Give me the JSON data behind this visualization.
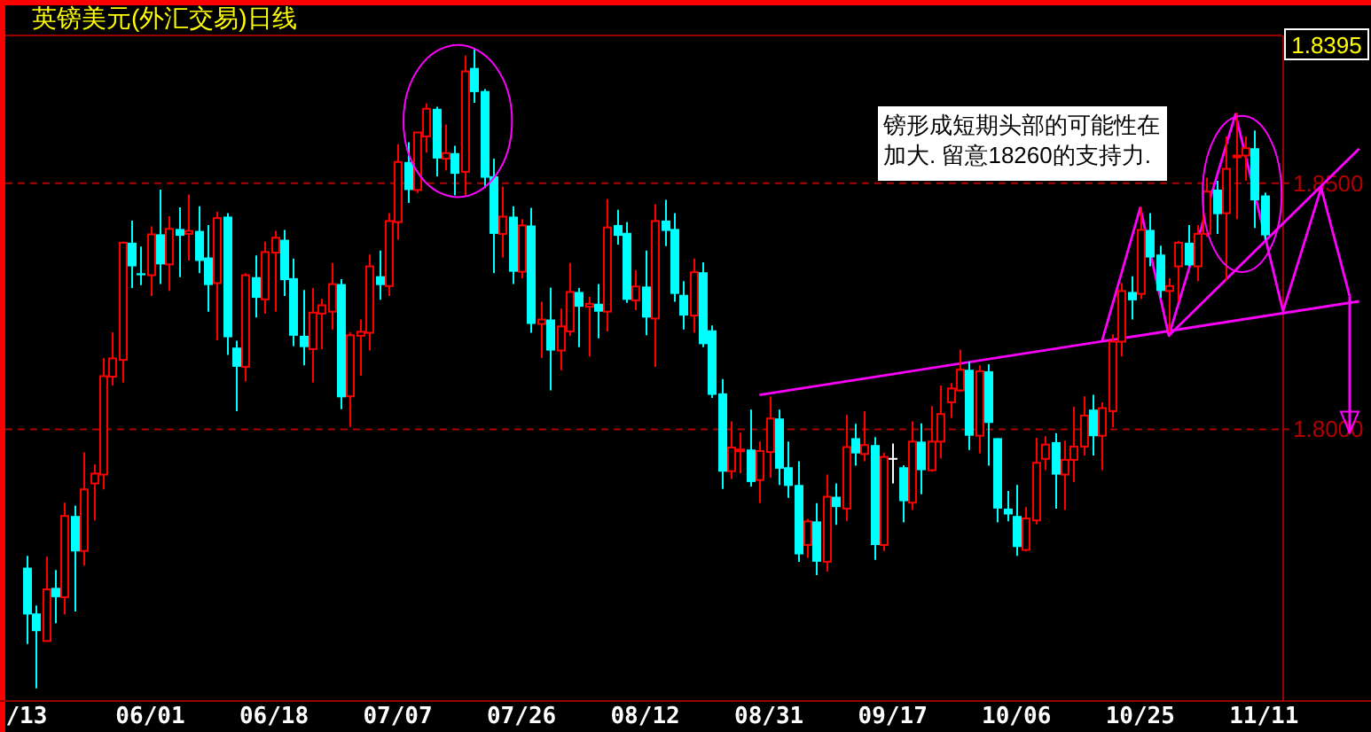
{
  "chart_data": {
    "type": "candlestick",
    "title": "英镑美元(外汇交易)日线",
    "categories": [
      "/13",
      null,
      null,
      null,
      null,
      null,
      null,
      null,
      null,
      null,
      null,
      null,
      null,
      "06/01",
      null,
      null,
      null,
      null,
      null,
      null,
      null,
      null,
      null,
      null,
      null,
      null,
      "06/18",
      null,
      null,
      null,
      null,
      null,
      null,
      null,
      null,
      null,
      null,
      null,
      null,
      "07/07",
      null,
      null,
      null,
      null,
      null,
      null,
      null,
      null,
      null,
      null,
      null,
      null,
      "07/26",
      null,
      null,
      null,
      null,
      null,
      null,
      null,
      null,
      null,
      null,
      null,
      null,
      "08/12",
      null,
      null,
      null,
      null,
      null,
      null,
      null,
      null,
      null,
      null,
      null,
      null,
      "08/31",
      null,
      null,
      null,
      null,
      null,
      null,
      null,
      null,
      null,
      null,
      null,
      null,
      "09/17",
      null,
      null,
      null,
      null,
      null,
      null,
      null,
      null,
      null,
      null,
      null,
      null,
      "10/06",
      null,
      null,
      null,
      null,
      null,
      null,
      null,
      null,
      null,
      null,
      null,
      null,
      "10/25",
      null,
      null,
      null,
      null,
      null,
      null,
      null,
      null,
      null,
      null,
      null,
      null,
      "11/11",
      null,
      null,
      null,
      null,
      null,
      null,
      null,
      null,
      null,
      null
    ],
    "ohlc": [
      [
        1.7719,
        1.7743,
        1.7564,
        1.7624
      ],
      [
        1.7626,
        1.7642,
        1.7474,
        1.759
      ],
      [
        1.757,
        1.7741,
        1.757,
        1.7675
      ],
      [
        1.7678,
        1.7714,
        1.7606,
        1.7659
      ],
      [
        1.7659,
        1.7851,
        1.7624,
        1.7824
      ],
      [
        1.7824,
        1.7845,
        1.763,
        1.7752
      ],
      [
        1.7753,
        1.7953,
        1.7723,
        1.7878
      ],
      [
        1.789,
        1.7929,
        1.7815,
        1.791
      ],
      [
        1.7908,
        1.8145,
        1.7878,
        1.8108
      ],
      [
        1.8107,
        1.8197,
        1.8089,
        1.8144
      ],
      [
        1.8141,
        1.8381,
        1.8095,
        1.8379
      ],
      [
        1.8379,
        1.8424,
        1.8287,
        1.8331
      ],
      [
        1.8317,
        1.8371,
        1.8293,
        1.8313
      ],
      [
        1.8313,
        1.8412,
        1.8271,
        1.8396
      ],
      [
        1.8396,
        1.8487,
        1.8295,
        1.8335
      ],
      [
        1.8335,
        1.8433,
        1.8281,
        1.8407
      ],
      [
        1.8407,
        1.8451,
        1.8309,
        1.8393
      ],
      [
        1.8397,
        1.8477,
        1.8343,
        1.8403
      ],
      [
        1.8403,
        1.8453,
        1.8317,
        1.8342
      ],
      [
        1.8349,
        1.8415,
        1.8239,
        1.8293
      ],
      [
        1.8297,
        1.8442,
        1.8181,
        1.8429
      ],
      [
        1.8432,
        1.8439,
        1.8151,
        1.8187
      ],
      [
        1.8166,
        1.818,
        1.8037,
        1.8127
      ],
      [
        1.8127,
        1.8317,
        1.8097,
        1.8313
      ],
      [
        1.8309,
        1.8353,
        1.8227,
        1.8267
      ],
      [
        1.8264,
        1.8381,
        1.8235,
        1.836
      ],
      [
        1.8359,
        1.8403,
        1.8239,
        1.8389
      ],
      [
        1.8385,
        1.8405,
        1.8271,
        1.8303
      ],
      [
        1.8307,
        1.8347,
        1.8169,
        1.819
      ],
      [
        1.819,
        1.8283,
        1.813,
        1.8167
      ],
      [
        1.8163,
        1.8287,
        1.8095,
        1.8237
      ],
      [
        1.8235,
        1.8265,
        1.8163,
        1.8252
      ],
      [
        1.8239,
        1.8338,
        1.8203,
        1.8295
      ],
      [
        1.8295,
        1.8305,
        1.8041,
        1.8065
      ],
      [
        1.8067,
        1.8197,
        1.8005,
        1.8191
      ],
      [
        1.819,
        1.8223,
        1.8109,
        1.8198
      ],
      [
        1.8196,
        1.8355,
        1.816,
        1.8331
      ],
      [
        1.8311,
        1.8363,
        1.8263,
        1.8293
      ],
      [
        1.8291,
        1.8439,
        1.8271,
        1.8423
      ],
      [
        1.8421,
        1.8579,
        1.8385,
        1.8543
      ],
      [
        1.8543,
        1.8583,
        1.846,
        1.8486
      ],
      [
        1.8486,
        1.8604,
        1.848,
        1.8603
      ],
      [
        1.8595,
        1.8662,
        1.8562,
        1.8651
      ],
      [
        1.8651,
        1.8655,
        1.8514,
        1.855
      ],
      [
        1.855,
        1.8619,
        1.8526,
        1.8561
      ],
      [
        1.8561,
        1.8576,
        1.8475,
        1.8519
      ],
      [
        1.8523,
        1.8759,
        1.8475,
        1.8727
      ],
      [
        1.8734,
        1.8775,
        1.8663,
        1.8685
      ],
      [
        1.8687,
        1.8691,
        1.849,
        1.8511
      ],
      [
        1.8514,
        1.855,
        1.8317,
        1.8397
      ],
      [
        1.8397,
        1.8493,
        1.8349,
        1.8432
      ],
      [
        1.8432,
        1.8453,
        1.8295,
        1.832
      ],
      [
        1.832,
        1.8427,
        1.8307,
        1.8414
      ],
      [
        1.8414,
        1.845,
        1.8196,
        1.8214
      ],
      [
        1.8214,
        1.8259,
        1.8145,
        1.8223
      ],
      [
        1.8223,
        1.8288,
        1.8079,
        1.816
      ],
      [
        1.816,
        1.8245,
        1.812,
        1.8209
      ],
      [
        1.8199,
        1.8338,
        1.819,
        1.8279
      ],
      [
        1.8279,
        1.8287,
        1.8167,
        1.8249
      ],
      [
        1.8249,
        1.8269,
        1.8148,
        1.8255
      ],
      [
        1.8255,
        1.8295,
        1.8185,
        1.8239
      ],
      [
        1.8239,
        1.8468,
        1.8199,
        1.841
      ],
      [
        1.8415,
        1.8446,
        1.8375,
        1.8393
      ],
      [
        1.8399,
        1.8421,
        1.8257,
        1.8263
      ],
      [
        1.8262,
        1.8323,
        1.8242,
        1.829
      ],
      [
        1.829,
        1.8363,
        1.8191,
        1.8227
      ],
      [
        1.8225,
        1.8457,
        1.8127,
        1.8423
      ],
      [
        1.8424,
        1.8466,
        1.8372,
        1.8403
      ],
      [
        1.8407,
        1.8439,
        1.8259,
        1.8275
      ],
      [
        1.8273,
        1.8301,
        1.8203,
        1.8231
      ],
      [
        1.8231,
        1.8347,
        1.8196,
        1.8319
      ],
      [
        1.8319,
        1.8339,
        1.8167,
        1.8173
      ],
      [
        1.8201,
        1.8211,
        1.8064,
        1.807
      ],
      [
        1.8073,
        1.8102,
        1.7879,
        1.7914
      ],
      [
        1.7915,
        1.8016,
        1.7899,
        1.7963
      ],
      [
        1.7957,
        1.7993,
        1.7911,
        1.7959
      ],
      [
        1.7959,
        1.804,
        1.7884,
        1.7893
      ],
      [
        1.7897,
        1.7975,
        1.785,
        1.7956
      ],
      [
        1.7954,
        1.8067,
        1.7902,
        1.8022
      ],
      [
        1.8022,
        1.804,
        1.7887,
        1.792
      ],
      [
        1.7923,
        1.7975,
        1.7861,
        1.7885
      ],
      [
        1.7887,
        1.7935,
        1.7731,
        1.7746
      ],
      [
        1.7765,
        1.7818,
        1.7739,
        1.7813
      ],
      [
        1.7813,
        1.785,
        1.7704,
        1.7731
      ],
      [
        1.7731,
        1.7908,
        1.7711,
        1.7863
      ],
      [
        1.7863,
        1.789,
        1.7806,
        1.7842
      ],
      [
        1.7839,
        1.8029,
        1.7814,
        1.7964
      ],
      [
        1.7982,
        1.8011,
        1.7926,
        1.7951
      ],
      [
        1.795,
        1.8037,
        1.7935,
        1.7968
      ],
      [
        1.7968,
        1.7984,
        1.7735,
        1.7765
      ],
      [
        1.7765,
        1.7952,
        1.7753,
        1.7944
      ],
      [
        1.794,
        1.7971,
        1.789,
        1.794
      ],
      [
        1.7923,
        1.7927,
        1.7811,
        1.7854
      ],
      [
        1.7851,
        1.8016,
        1.7836,
        1.7975
      ],
      [
        1.7975,
        1.8012,
        1.7868,
        1.7917
      ],
      [
        1.7917,
        1.8047,
        1.7914,
        1.7975
      ],
      [
        1.7975,
        1.8089,
        1.7941,
        1.8031
      ],
      [
        1.8055,
        1.8094,
        1.8023,
        1.8083
      ],
      [
        1.8079,
        1.8162,
        1.8076,
        1.8121
      ],
      [
        1.8121,
        1.8137,
        1.7958,
        1.7987
      ],
      [
        1.7987,
        1.813,
        1.7951,
        1.8118
      ],
      [
        1.8118,
        1.8132,
        1.7926,
        1.8013
      ],
      [
        1.7982,
        1.7982,
        1.7811,
        1.7839
      ],
      [
        1.7839,
        1.7875,
        1.7813,
        1.7827
      ],
      [
        1.7824,
        1.7887,
        1.7743,
        1.7761
      ],
      [
        1.7755,
        1.7842,
        1.7752,
        1.7819
      ],
      [
        1.7815,
        1.7983,
        1.7807,
        1.7932
      ],
      [
        1.794,
        1.7986,
        1.7917,
        1.7969
      ],
      [
        1.7974,
        1.7992,
        1.7839,
        1.7908
      ],
      [
        1.7908,
        1.7977,
        1.7836,
        1.7938
      ],
      [
        1.7938,
        1.8046,
        1.7893,
        1.7965
      ],
      [
        1.7965,
        1.8067,
        1.7947,
        1.8028
      ],
      [
        1.804,
        1.807,
        1.7947,
        1.7986
      ],
      [
        1.7987,
        1.8055,
        1.7917,
        1.8043
      ],
      [
        1.8037,
        1.8193,
        1.8004,
        1.8178
      ],
      [
        1.8178,
        1.8297,
        1.8148,
        1.8281
      ],
      [
        1.8279,
        1.8311,
        1.8223,
        1.8262
      ],
      [
        1.8275,
        1.8451,
        1.8265,
        1.8405
      ],
      [
        1.8405,
        1.8439,
        1.8331,
        1.8349
      ],
      [
        1.8355,
        1.8373,
        1.8267,
        1.8281
      ],
      [
        1.8281,
        1.8307,
        1.8197,
        1.8291
      ],
      [
        1.8331,
        1.8383,
        1.8259,
        1.8379
      ],
      [
        1.8379,
        1.8415,
        1.8331,
        1.8333
      ],
      [
        1.8331,
        1.8415,
        1.8301,
        1.8397
      ],
      [
        1.8397,
        1.8511,
        1.8391,
        1.8483
      ],
      [
        1.8487,
        1.8505,
        1.8397,
        1.8437
      ],
      [
        1.8439,
        1.8595,
        1.8301,
        1.8529
      ],
      [
        1.8553,
        1.8643,
        1.8427,
        1.8556
      ],
      [
        1.8556,
        1.8595,
        1.8505,
        1.8571
      ],
      [
        1.8571,
        1.8607,
        1.8409,
        1.8465
      ],
      [
        1.8475,
        1.8481,
        1.8385,
        1.8394
      ],
      null,
      null,
      null,
      null,
      null,
      null,
      null,
      null,
      null,
      null
    ],
    "colors": [
      "#00ffff",
      "#00ffff",
      "#ff0000",
      "#00ffff",
      "#ff0000",
      "#00ffff",
      "#ff0000",
      "#ff0000",
      "#ff0000",
      "#ff0000",
      "#ff0000",
      "#00ffff",
      "#00ffff",
      "#ff0000",
      "#00ffff",
      "#ff0000",
      "#00ffff",
      "#ff0000",
      "#00ffff",
      "#00ffff",
      "#ff0000",
      "#00ffff",
      "#00ffff",
      "#ff0000",
      "#00ffff",
      "#ff0000",
      "#ff0000",
      "#00ffff",
      "#00ffff",
      "#00ffff",
      "#ff0000",
      "#ff0000",
      "#ff0000",
      "#00ffff",
      "#ff0000",
      "#ff0000",
      "#ff0000",
      "#00ffff",
      "#ff0000",
      "#ff0000",
      "#00ffff",
      "#ff0000",
      "#ff0000",
      "#00ffff",
      "#ff0000",
      "#00ffff",
      "#ff0000",
      "#00ffff",
      "#00ffff",
      "#00ffff",
      "#ff0000",
      "#00ffff",
      "#ff0000",
      "#00ffff",
      "#ff0000",
      "#00ffff",
      "#ff0000",
      "#ff0000",
      "#00ffff",
      "#ff0000",
      "#00ffff",
      "#ff0000",
      "#00ffff",
      "#00ffff",
      "#ff0000",
      "#00ffff",
      "#ff0000",
      "#00ffff",
      "#00ffff",
      "#00ffff",
      "#ff0000",
      "#00ffff",
      "#00ffff",
      "#00ffff",
      "#ff0000",
      "#ff0000",
      "#00ffff",
      "#ff0000",
      "#ff0000",
      "#00ffff",
      "#00ffff",
      "#00ffff",
      "#ff0000",
      "#00ffff",
      "#ff0000",
      "#00ffff",
      "#ff0000",
      "#00ffff",
      "#ff0000",
      "#00ffff",
      "#ff0000",
      "#ffffff",
      "#00ffff",
      "#ff0000",
      "#00ffff",
      "#ff0000",
      "#ff0000",
      "#ff0000",
      "#ff0000",
      "#00ffff",
      "#ff0000",
      "#00ffff",
      "#00ffff",
      "#00ffff",
      "#00ffff",
      "#ff0000",
      "#ff0000",
      "#ff0000",
      "#00ffff",
      "#ff0000",
      "#ff0000",
      "#ff0000",
      "#00ffff",
      "#ff0000",
      "#ff0000",
      "#ff0000",
      "#00ffff",
      "#ff0000",
      "#00ffff",
      "#00ffff",
      "#ff0000",
      "#ff0000",
      "#00ffff",
      "#ff0000",
      "#ff0000",
      "#00ffff",
      "#ff0000",
      "#ff0000",
      "#ff0000",
      "#00ffff",
      "#00ffff",
      null,
      null,
      null,
      null,
      null,
      null,
      null,
      null,
      null,
      null
    ],
    "series": [
      {
        "type": "line",
        "color": "#ff00ff",
        "values": [
          null,
          null,
          null,
          null,
          null,
          null,
          null,
          null,
          null,
          null,
          null,
          null,
          null,
          null,
          null,
          null,
          null,
          null,
          null,
          null,
          null,
          null,
          null,
          null,
          null,
          null,
          null,
          null,
          null,
          null,
          null,
          null,
          null,
          null,
          null,
          null,
          null,
          null,
          null,
          null,
          null,
          null,
          null,
          null,
          null,
          null,
          null,
          null,
          null,
          null,
          null,
          null,
          null,
          null,
          null,
          null,
          null,
          null,
          null,
          null,
          null,
          null,
          null,
          null,
          null,
          null,
          null,
          null,
          null,
          null,
          null,
          null,
          null,
          null,
          null,
          null,
          null,
          1.807,
          null,
          null,
          null,
          null,
          null,
          null,
          null,
          null,
          null,
          null,
          null,
          null,
          null,
          null,
          null,
          null,
          null,
          null,
          null,
          null,
          null,
          null,
          null,
          null,
          null,
          null,
          null,
          null,
          null,
          null,
          null,
          null,
          null,
          null,
          null,
          null,
          null,
          null,
          null,
          null,
          null,
          null,
          null,
          null,
          null,
          null,
          null,
          null,
          null,
          null,
          null,
          null,
          null,
          null,
          null,
          null,
          null,
          null,
          null,
          null,
          null,
          null,
          1.826
        ]
      },
      {
        "type": "line",
        "color": "#ff00ff",
        "values": [
          null,
          null,
          null,
          null,
          null,
          null,
          null,
          null,
          null,
          null,
          null,
          null,
          null,
          null,
          null,
          null,
          null,
          null,
          null,
          null,
          null,
          null,
          null,
          null,
          null,
          null,
          null,
          null,
          null,
          null,
          null,
          null,
          null,
          null,
          null,
          null,
          null,
          null,
          null,
          null,
          null,
          null,
          null,
          null,
          null,
          null,
          null,
          null,
          null,
          null,
          null,
          null,
          null,
          null,
          null,
          null,
          null,
          null,
          null,
          null,
          null,
          null,
          null,
          null,
          null,
          null,
          null,
          null,
          null,
          null,
          null,
          null,
          null,
          null,
          null,
          null,
          null,
          null,
          null,
          null,
          null,
          null,
          null,
          null,
          null,
          null,
          null,
          null,
          null,
          null,
          null,
          null,
          null,
          null,
          null,
          null,
          null,
          null,
          null,
          null,
          null,
          null,
          null,
          null,
          null,
          null,
          null,
          null,
          null,
          null,
          null,
          null,
          null,
          null,
          null,
          null,
          null,
          null,
          null,
          null,
          1.819,
          null,
          null,
          null,
          null,
          null,
          null,
          null,
          null,
          null,
          null,
          null,
          null,
          null,
          null,
          null,
          null,
          null,
          null,
          null,
          1.857
        ]
      },
      {
        "type": "line",
        "color": "#ff00ff",
        "values": [
          null,
          null,
          null,
          null,
          null,
          null,
          null,
          null,
          null,
          null,
          null,
          null,
          null,
          null,
          null,
          null,
          null,
          null,
          null,
          null,
          null,
          null,
          null,
          null,
          null,
          null,
          null,
          null,
          null,
          null,
          null,
          null,
          null,
          null,
          null,
          null,
          null,
          null,
          null,
          null,
          null,
          null,
          null,
          null,
          null,
          null,
          null,
          null,
          null,
          null,
          null,
          null,
          null,
          null,
          null,
          null,
          null,
          null,
          null,
          null,
          null,
          null,
          null,
          null,
          null,
          null,
          null,
          null,
          null,
          null,
          null,
          null,
          null,
          null,
          null,
          null,
          null,
          null,
          null,
          null,
          null,
          null,
          null,
          null,
          null,
          null,
          null,
          null,
          null,
          null,
          null,
          null,
          null,
          null,
          null,
          null,
          null,
          null,
          null,
          null,
          null,
          null,
          null,
          null,
          null,
          null,
          null,
          null,
          null,
          null,
          null,
          null,
          null,
          1.818,
          null,
          null,
          null,
          1.845,
          null,
          null,
          1.819,
          null,
          null,
          null,
          null,
          null,
          null,
          1.864,
          null,
          null,
          null,
          null,
          1.824,
          null,
          null,
          null,
          1.849,
          null,
          null,
          1.827,
          null
        ]
      }
    ],
    "ylim": [
      1.745,
      1.88
    ],
    "yticks": [
      {
        "value": 1.85,
        "label": "1.8500"
      },
      {
        "value": 1.8,
        "label": "1.8000"
      }
    ],
    "grid": "y",
    "annotations": [
      "镑形成短期头部的可能性在",
      "加大. 留意18260的支持力.",
      "1.8395"
    ]
  }
}
